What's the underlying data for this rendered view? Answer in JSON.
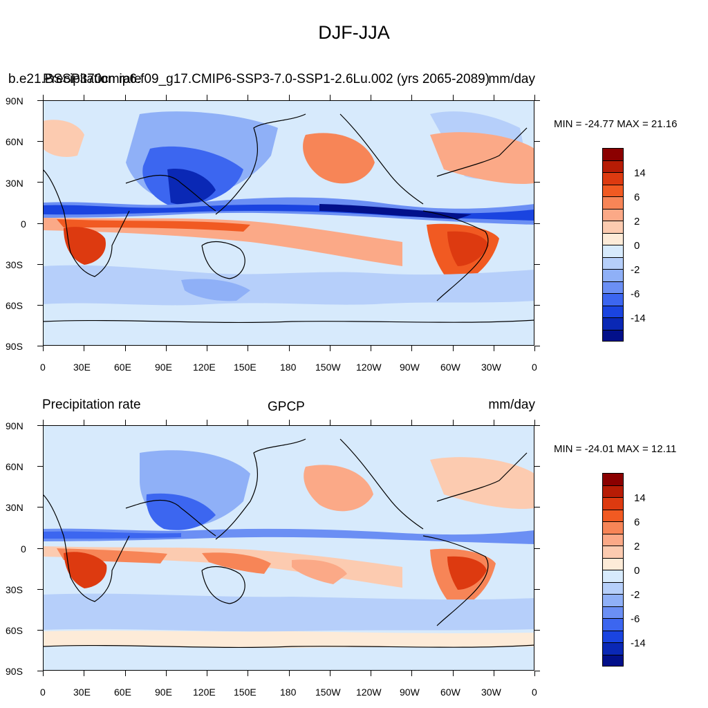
{
  "figure": {
    "title": "DJF-JJA"
  },
  "panels": [
    {
      "left_title": "b.e21.BSSP370cmip6.f09_g17.CMIP6-SSP3-7.0-SSP1-2.6Lu.002 (yrs 2065-2089)",
      "overlay_left_title": "Precipitation rate",
      "center_title": "",
      "units": "mm/day",
      "minmax": "MIN = -24.77 MAX =  21.16"
    },
    {
      "left_title": "Precipitation rate",
      "center_title": "GPCP",
      "units": "mm/day",
      "minmax": "MIN = -24.01 MAX =  12.11"
    }
  ],
  "axes": {
    "lat_ticks": [
      "90N",
      "60N",
      "30N",
      "0",
      "30S",
      "60S",
      "90S"
    ],
    "lon_ticks": [
      "0",
      "30E",
      "60E",
      "90E",
      "120E",
      "150E",
      "180",
      "150W",
      "120W",
      "90W",
      "60W",
      "30W",
      "0"
    ]
  },
  "colorbar": {
    "colors": [
      "#8b0000",
      "#b71c05",
      "#dd3a10",
      "#f15a22",
      "#f78557",
      "#fba987",
      "#fccbb0",
      "#fdebd8",
      "#d7eafc",
      "#b6cffa",
      "#8fb0f7",
      "#6b8ff4",
      "#3c66f0",
      "#1a44e0",
      "#0a28b5",
      "#02108a"
    ],
    "labels": [
      "14",
      "6",
      "2",
      "0",
      "-2",
      "-6",
      "-14"
    ]
  },
  "chart_data": {
    "type": "heatmap",
    "title": "DJF-JJA",
    "units": "mm/day",
    "x": {
      "range": [
        0,
        360
      ]
    },
    "y": {
      "range": [
        -90,
        90
      ]
    },
    "panels": [
      {
        "dataset": "b.e21.BSSP370cmip6.f09_g17.CMIP6-SSP3-7.0-SSP1-2.6Lu.002 (yrs 2065-2089)",
        "min": -24.77,
        "max": 21.16
      },
      {
        "dataset": "GPCP",
        "min": -24.01,
        "max": 12.11
      }
    ],
    "levels": [
      -14,
      -6,
      -2,
      0,
      2,
      6,
      14
    ]
  }
}
